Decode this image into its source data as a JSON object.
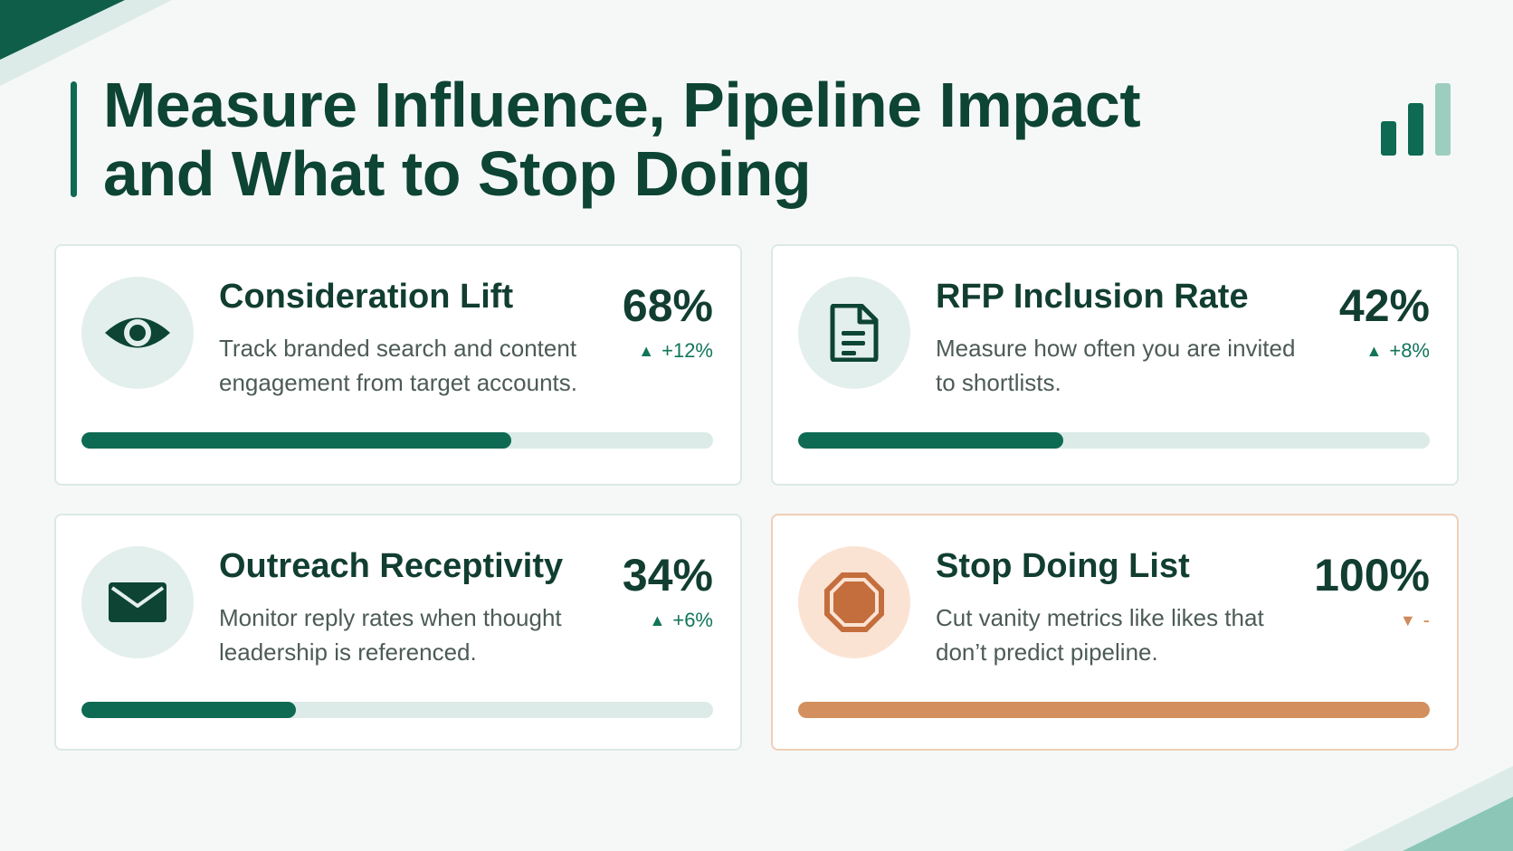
{
  "title_lines": [
    "Measure Influence, Pipeline Impact",
    "and What to Stop Doing"
  ],
  "colors": {
    "primary": "#0e6a52",
    "title": "#0d4434",
    "accent_warn": "#d38f5e",
    "track": "#dcebe8"
  },
  "cards": [
    {
      "icon": "eye-icon",
      "title": "Consideration Lift",
      "description": "Track branded search and content engagement from target accounts.",
      "metric": "68%",
      "delta_arrow": "▲",
      "delta": "+12%",
      "progress": 0.68
    },
    {
      "icon": "document-icon",
      "title": "RFP Inclusion Rate",
      "description": "Measure how often you are invited to shortlists.",
      "metric": "42%",
      "delta_arrow": "▲",
      "delta": "+8%",
      "progress": 0.42
    },
    {
      "icon": "envelope-icon",
      "title": "Outreach Receptivity",
      "description": "Monitor reply rates when thought leadership is referenced.",
      "metric": "34%",
      "delta_arrow": "▲",
      "delta": "+6%",
      "progress": 0.34
    },
    {
      "icon": "stop-sign-icon",
      "title": "Stop Doing List",
      "description": "Cut vanity metrics like likes that don’t predict pipeline.",
      "metric": "100%",
      "delta_arrow": "▼",
      "delta": "-",
      "progress": 1.0
    }
  ]
}
